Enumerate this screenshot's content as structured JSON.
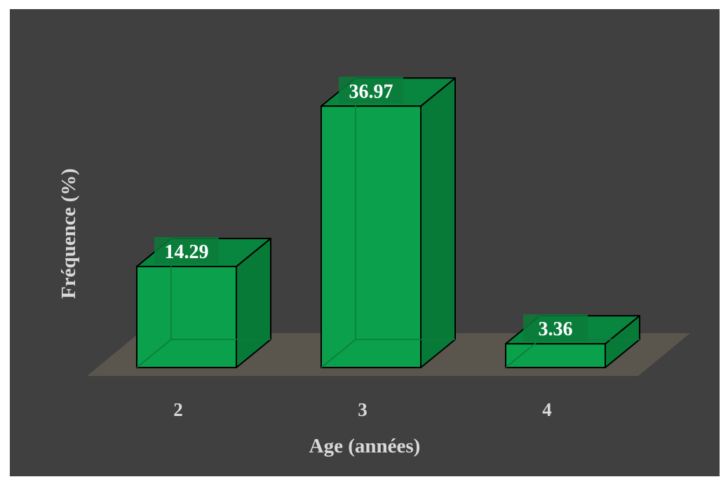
{
  "chart_data": {
    "type": "bar",
    "categories": [
      "2",
      "3",
      "4"
    ],
    "values": [
      14.29,
      36.97,
      3.36
    ],
    "value_labels": [
      "14.29",
      "36.97",
      "3.36"
    ],
    "title": "",
    "xlabel": "Age (années)",
    "ylabel": "Fréquence (%)",
    "ylim": [
      0,
      40
    ],
    "grid": false,
    "legend": "none",
    "colors": {
      "background": "#404040",
      "floor": "#5a554d",
      "bar_front": "#0aa04c",
      "bar_top": "#08853e",
      "bar_side": "#077a38",
      "label_box": "#0b7b3a",
      "text": "#d9d9d9"
    }
  }
}
